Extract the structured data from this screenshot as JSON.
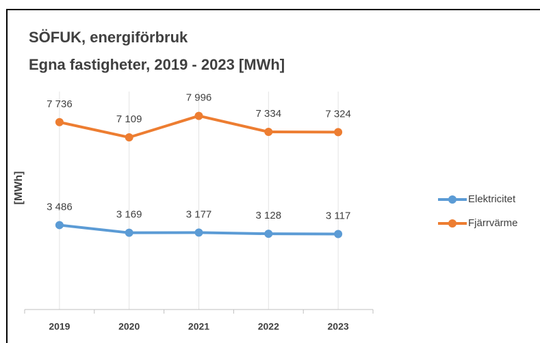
{
  "chart_data": {
    "type": "line",
    "title": "SÖFUK, energiförbruk",
    "subtitle": "Egna fastigheter, 2019 - 2023 [MWh]",
    "ylabel": "[MWh]",
    "categories": [
      "2019",
      "2020",
      "2021",
      "2022",
      "2023"
    ],
    "series": [
      {
        "name": "Elektricitet",
        "color": "#5b9bd5",
        "values": [
          3486,
          3169,
          3177,
          3128,
          3117
        ],
        "value_labels": [
          "3 486",
          "3 169",
          "3 177",
          "3 128",
          "3 117"
        ]
      },
      {
        "name": "Fjärrvärme",
        "color": "#ed7d31",
        "values": [
          7736,
          7109,
          7996,
          7334,
          7324
        ],
        "value_labels": [
          "7 736",
          "7 109",
          "7 996",
          "7 334",
          "7 324"
        ]
      }
    ],
    "ylim": [
      0,
      9000
    ],
    "grid": true,
    "legend": "right"
  }
}
